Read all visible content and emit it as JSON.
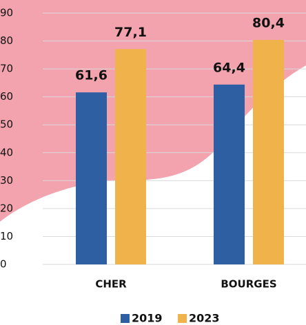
{
  "chart_data": {
    "type": "bar",
    "categories": [
      "CHER",
      "BOURGES"
    ],
    "series": [
      {
        "name": "2019",
        "color": "#2e5fa3",
        "values": [
          61.6,
          64.4
        ],
        "value_labels": [
          "61,6",
          "64,4"
        ]
      },
      {
        "name": "2023",
        "color": "#f0b24a",
        "values": [
          77.1,
          80.4
        ],
        "value_labels": [
          "77,1",
          "80,4"
        ]
      }
    ],
    "ylim": [
      0,
      90
    ],
    "yticks": [
      0,
      10,
      20,
      30,
      40,
      50,
      60,
      70,
      80,
      90
    ],
    "grid": true
  }
}
